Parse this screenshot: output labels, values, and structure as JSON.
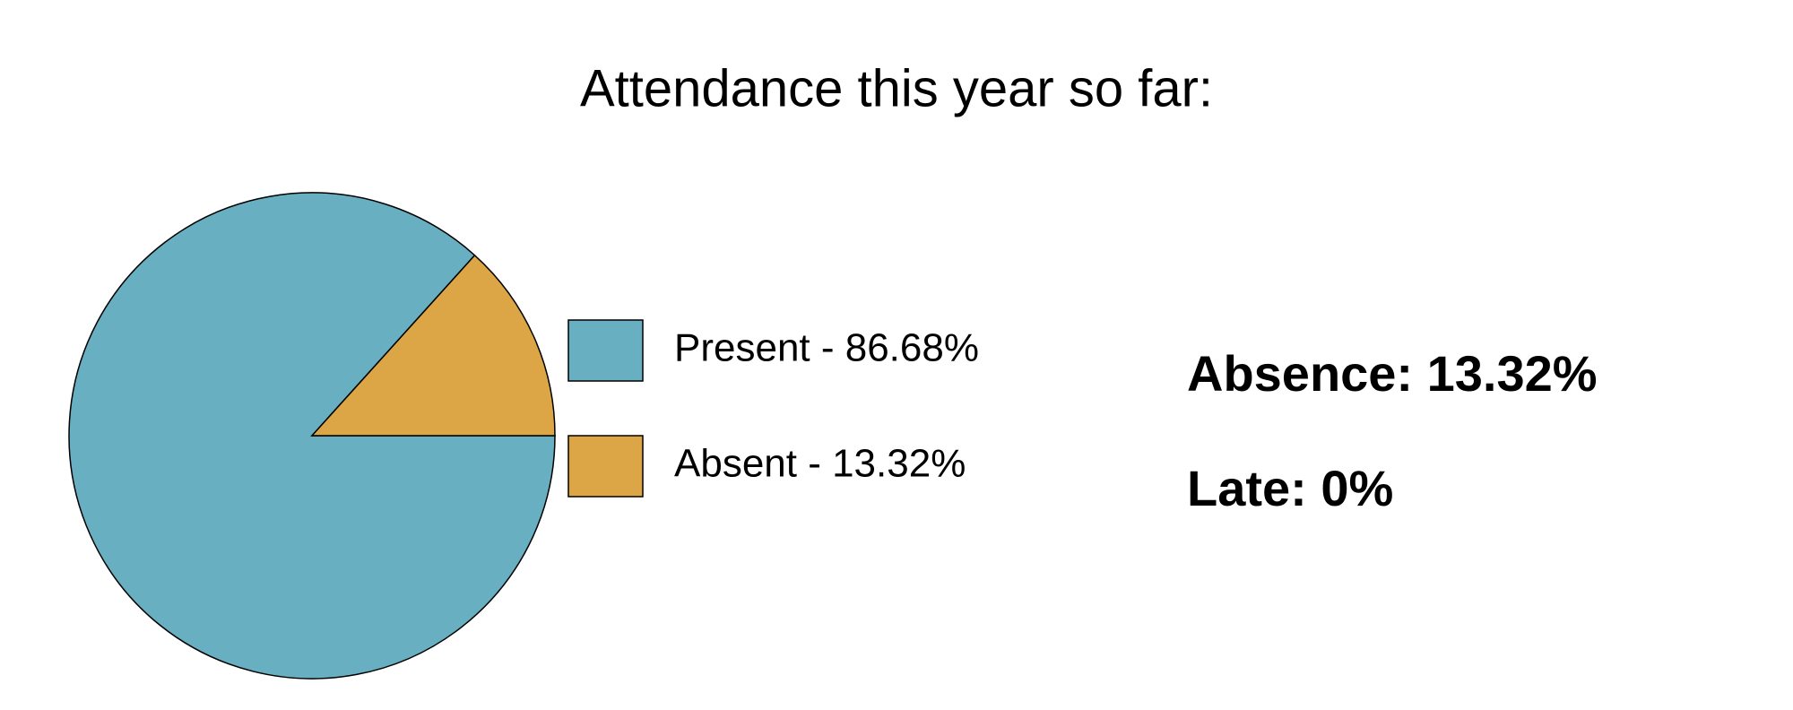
{
  "chart_data": {
    "type": "pie",
    "title": "Attendance this year so far:",
    "categories": [
      "Present - 86.68%",
      "Absent - 13.32%"
    ],
    "values": [
      86.68,
      13.32
    ],
    "colors": [
      "#67afc1",
      "#dca545"
    ],
    "legend": "right",
    "annotations": [
      "Absence: 13.32%",
      "Late: 0%"
    ]
  }
}
